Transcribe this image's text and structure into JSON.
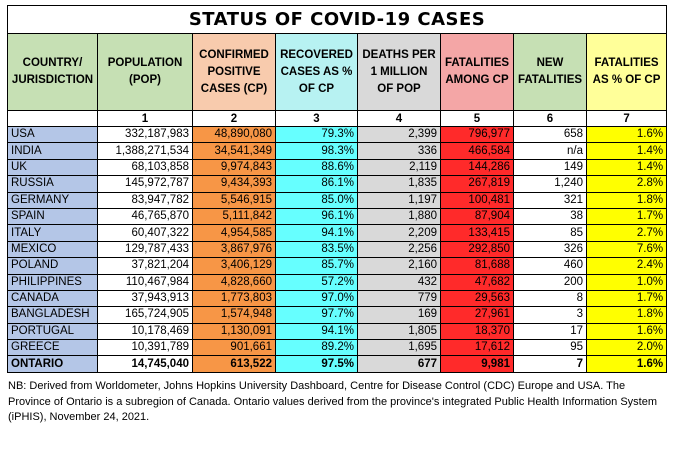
{
  "title": "STATUS OF COVID-19 CASES",
  "headers": [
    "COUNTRY/ JURISDICTION",
    "POPULATION (POP)",
    "CONFIRMED POSITIVE CASES (CP)",
    "RECOVERED CASES AS % OF CP",
    "DEATHS PER 1 MILLION OF POP",
    "FATALITIES AMONG CP",
    "NEW FATALITIES",
    "FATALITIES AS % OF CP"
  ],
  "column_numbers": [
    "",
    "1",
    "2",
    "3",
    "4",
    "5",
    "6",
    "7"
  ],
  "rows": [
    [
      "USA",
      "332,187,983",
      "48,890,080",
      "79.3%",
      "2,399",
      "796,977",
      "658",
      "1.6%"
    ],
    [
      "INDIA",
      "1,388,271,534",
      "34,541,349",
      "98.3%",
      "336",
      "466,584",
      "n/a",
      "1.4%"
    ],
    [
      "UK",
      "68,103,858",
      "9,974,843",
      "88.6%",
      "2,119",
      "144,286",
      "149",
      "1.4%"
    ],
    [
      "RUSSIA",
      "145,972,787",
      "9,434,393",
      "86.1%",
      "1,835",
      "267,819",
      "1,240",
      "2.8%"
    ],
    [
      "GERMANY",
      "83,947,782",
      "5,546,915",
      "85.0%",
      "1,197",
      "100,481",
      "321",
      "1.8%"
    ],
    [
      "SPAIN",
      "46,765,870",
      "5,111,842",
      "96.1%",
      "1,880",
      "87,904",
      "38",
      "1.7%"
    ],
    [
      "ITALY",
      "60,407,322",
      "4,954,585",
      "94.1%",
      "2,209",
      "133,415",
      "85",
      "2.7%"
    ],
    [
      "MEXICO",
      "129,787,433",
      "3,867,976",
      "83.5%",
      "2,256",
      "292,850",
      "326",
      "7.6%"
    ],
    [
      "POLAND",
      "37,821,204",
      "3,406,129",
      "85.7%",
      "2,160",
      "81,688",
      "460",
      "2.4%"
    ],
    [
      "PHILIPPINES",
      "110,467,984",
      "4,828,660",
      "57.2%",
      "432",
      "47,682",
      "200",
      "1.0%"
    ],
    [
      "CANADA",
      "37,943,913",
      "1,773,803",
      "97.0%",
      "779",
      "29,563",
      "8",
      "1.7%"
    ],
    [
      "BANGLADESH",
      "165,724,905",
      "1,574,948",
      "97.7%",
      "169",
      "27,961",
      "3",
      "1.8%"
    ],
    [
      "PORTUGAL",
      "10,178,469",
      "1,130,091",
      "94.1%",
      "1,805",
      "18,370",
      "17",
      "1.6%"
    ],
    [
      "GREECE",
      "10,391,789",
      "901,661",
      "89.2%",
      "1,695",
      "17,612",
      "95",
      "2.0%"
    ],
    [
      "ONTARIO",
      "14,745,040",
      "613,522",
      "97.5%",
      "677",
      "9,981",
      "7",
      "1.6%"
    ]
  ],
  "footnote": "NB: Derived from Worldometer, Johns Hopkins University Dashboard, Centre for Disease Control (CDC) Europe and USA. The Province of Ontario is a subregion of Canada. Ontario values derived from the province's integrated Public Health Information System (iPHIS), November 24, 2021."
}
